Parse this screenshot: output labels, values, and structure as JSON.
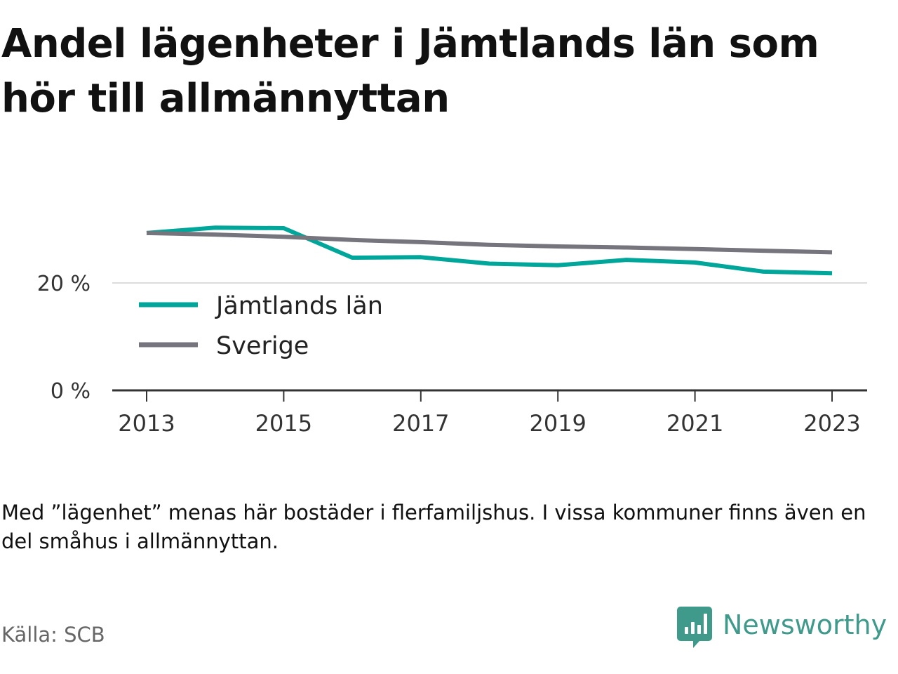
{
  "title": "Andel lägenheter i Jämtlands län som hör till allmännyttan",
  "note": "Med ”lägenhet” menas här bostäder i flerfamiljshus. I vissa kommuner finns även en del småhus i allmännyttan.",
  "source": "Källa: SCB",
  "brand": {
    "name": "Newsworthy",
    "icon": "newsworthy-logo-icon",
    "color": "#3f9a8b"
  },
  "chart_data": {
    "type": "line",
    "title": "Andel lägenheter i Jämtlands län som hör till allmännyttan",
    "xlabel": "",
    "ylabel": "",
    "x": [
      2013,
      2014,
      2015,
      2016,
      2017,
      2018,
      2019,
      2020,
      2021,
      2022,
      2023
    ],
    "x_ticks": [
      "2013",
      "2015",
      "2017",
      "2019",
      "2021",
      "2023"
    ],
    "x_tick_values": [
      2013,
      2015,
      2017,
      2019,
      2021,
      2023
    ],
    "y_ticks": [
      "0 %",
      "20 %"
    ],
    "y_tick_values": [
      0,
      20
    ],
    "ylim": [
      0,
      31
    ],
    "grid": true,
    "legend_position": "inside-left",
    "series": [
      {
        "name": "Jämtlands län",
        "color": "#00a699",
        "values": [
          29.3,
          30.3,
          30.2,
          24.7,
          24.8,
          23.6,
          23.3,
          24.3,
          23.8,
          22.1,
          21.8
        ]
      },
      {
        "name": "Sverige",
        "color": "#76747c",
        "values": [
          29.3,
          29.0,
          28.6,
          28.0,
          27.6,
          27.1,
          26.8,
          26.6,
          26.3,
          26.0,
          25.7
        ]
      }
    ]
  }
}
